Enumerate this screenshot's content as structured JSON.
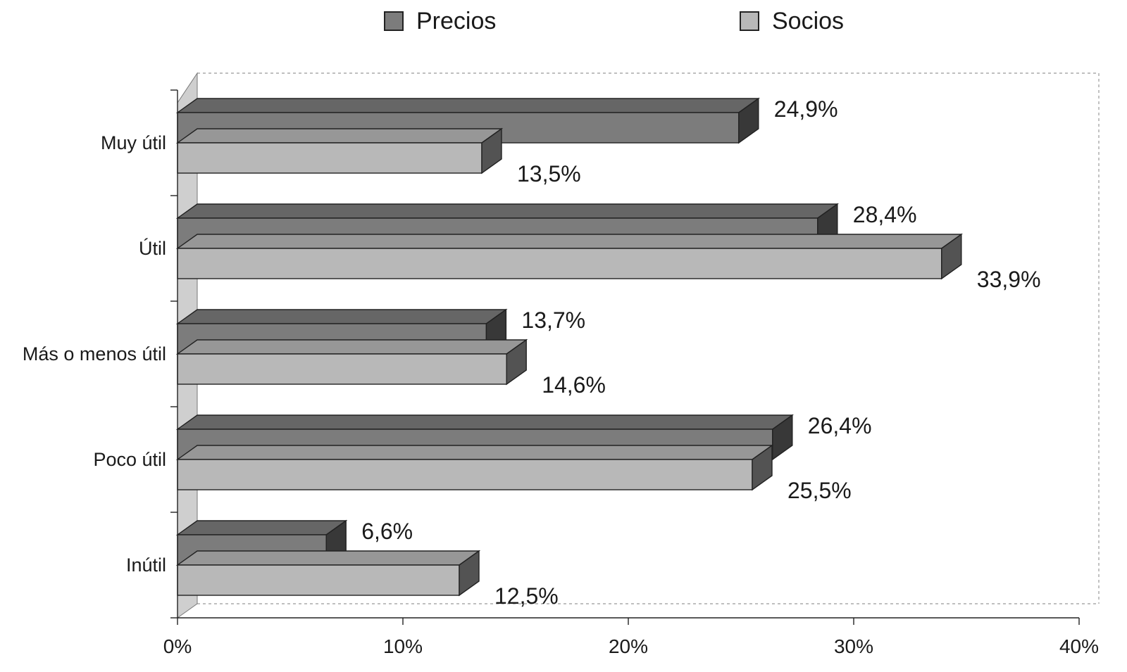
{
  "chart_data": {
    "type": "bar",
    "orientation": "horizontal",
    "three_d": true,
    "categories": [
      "Muy útil",
      "Útil",
      "Más o menos útil",
      "Poco útil",
      "Inútil"
    ],
    "series": [
      {
        "name": "Precios",
        "values": [
          24.9,
          28.4,
          13.7,
          26.4,
          6.6
        ],
        "labels": [
          "24,9%",
          "28,4%",
          "13,7%",
          "26,4%",
          "6,6%"
        ],
        "color": "#7c7c7c"
      },
      {
        "name": "Socios",
        "values": [
          13.5,
          33.9,
          14.6,
          25.5,
          12.5
        ],
        "labels": [
          "13,5%",
          "33,9%",
          "14,6%",
          "25,5%",
          "12,5%"
        ],
        "color": "#b8b8b8"
      }
    ],
    "xlim": [
      0,
      40
    ],
    "x_ticks": [
      "0%",
      "10%",
      "20%",
      "30%",
      "40%"
    ],
    "legend_position": "top",
    "grid": false
  }
}
